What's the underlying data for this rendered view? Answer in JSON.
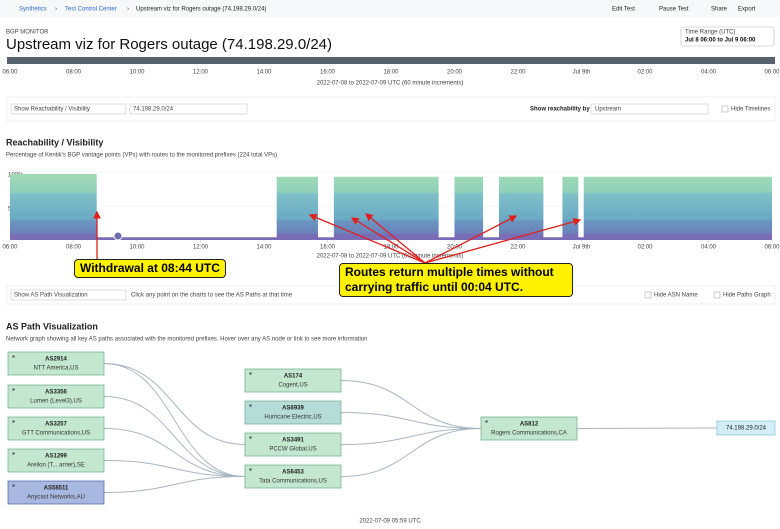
{
  "header": {
    "breadcrumb": [
      "Synthetics",
      "Test Control Center",
      "Upstream viz for Rogers outage (74.198.29.0/24)"
    ],
    "actions": [
      "Edit Test",
      "Pause Test",
      "Share",
      "Export"
    ],
    "kicker": "BGP MONITOR",
    "title": "Upstream viz for Rogers outage (74.198.29.0/24)",
    "time_range_label": "Time Range (UTC)",
    "time_range": "Jul 8 06:00 to Jul 9 06:00"
  },
  "controls": {
    "view": "Show Reachability / Visibility",
    "prefix": "74.198.29.0/24",
    "reach_by_label": "Show reachability by",
    "reach_by": "Upstream",
    "hide_timelines": "Hide Timelines"
  },
  "chart_data": {
    "type": "area",
    "title": "Reachability / Visibility",
    "subtitle": "Percentage of Kentik's BGP vantage points (VPs) with routes to the monitored prefixes (224 total VPs)",
    "x_caption": "2022-07-08 to 2022-07-09 UTC (60 minute increments)",
    "x": [
      0,
      2.73,
      2.73,
      8.4,
      8.4,
      9.7,
      9.7,
      10.2,
      10.2,
      13.5,
      13.5,
      14,
      14,
      14.9,
      14.9,
      15.4,
      15.4,
      16.8,
      16.8,
      17.4,
      17.4,
      17.9,
      17.9,
      18.07,
      18.07,
      24
    ],
    "values": [
      97,
      97,
      4,
      4,
      93,
      93,
      4,
      4,
      93,
      93,
      4,
      4,
      93,
      93,
      4,
      4,
      93,
      93,
      4,
      4,
      93,
      93,
      4,
      4,
      93,
      93
    ],
    "xlim": [
      0,
      24
    ],
    "xticks": [
      {
        "value": 0,
        "label": "06:00"
      },
      {
        "value": 2,
        "label": "08:00"
      },
      {
        "value": 4,
        "label": "10:00"
      },
      {
        "value": 6,
        "label": "12:00"
      },
      {
        "value": 8,
        "label": "14:00"
      },
      {
        "value": 10,
        "label": "16:00"
      },
      {
        "value": 12,
        "label": "18:00"
      },
      {
        "value": 14,
        "label": "20:00"
      },
      {
        "value": 16,
        "label": "22:00"
      },
      {
        "value": 18,
        "label": "Jul 9th"
      },
      {
        "value": 20,
        "label": "02:00"
      },
      {
        "value": 22,
        "label": "04:00"
      },
      {
        "value": 24,
        "label": "06:00"
      }
    ],
    "ylim": [
      0,
      100
    ],
    "yticks": [
      {
        "value": 100,
        "label": "100%"
      },
      {
        "value": 50,
        "label": "50%"
      }
    ],
    "annotations": [
      "Withdrawal at 08:44 UTC",
      "Routes return multiple times without carrying traffic until 00:04 UTC."
    ]
  },
  "path_controls": {
    "view": "Show AS Path Visualization",
    "hint": "Click any point on the charts to see the AS Paths at that time",
    "hide_asn": "Hide ASN Name",
    "hide_graph": "Hide Paths Graph"
  },
  "as_path": {
    "title": "AS Path Visualization",
    "description": "Network graph showing all key AS paths associated with the monitored prefixes. Hover over any AS node or link to see more information",
    "nodes": [
      {
        "asn": "AS2914",
        "name": "NTT America,US"
      },
      {
        "asn": "AS3356",
        "name": "Lumen (Level3),US"
      },
      {
        "asn": "AS3257",
        "name": "GTT Communications,US"
      },
      {
        "asn": "AS1299",
        "name": "Arelion (T... arrier),SE"
      },
      {
        "asn": "AS58511",
        "name": "Anycast Networks,AU"
      },
      {
        "asn": "AS174",
        "name": "Cogent,US"
      },
      {
        "asn": "AS6939",
        "name": "Hurricane Electric,US"
      },
      {
        "asn": "AS3491",
        "name": "PCCW Global,US"
      },
      {
        "asn": "AS6453",
        "name": "Tata Communications,US"
      },
      {
        "asn": "AS812",
        "name": "Rogers Communications,CA"
      }
    ],
    "prefix": "74.198.29.0/24",
    "timestamp": "2022-07-09 05:59 UTC"
  }
}
